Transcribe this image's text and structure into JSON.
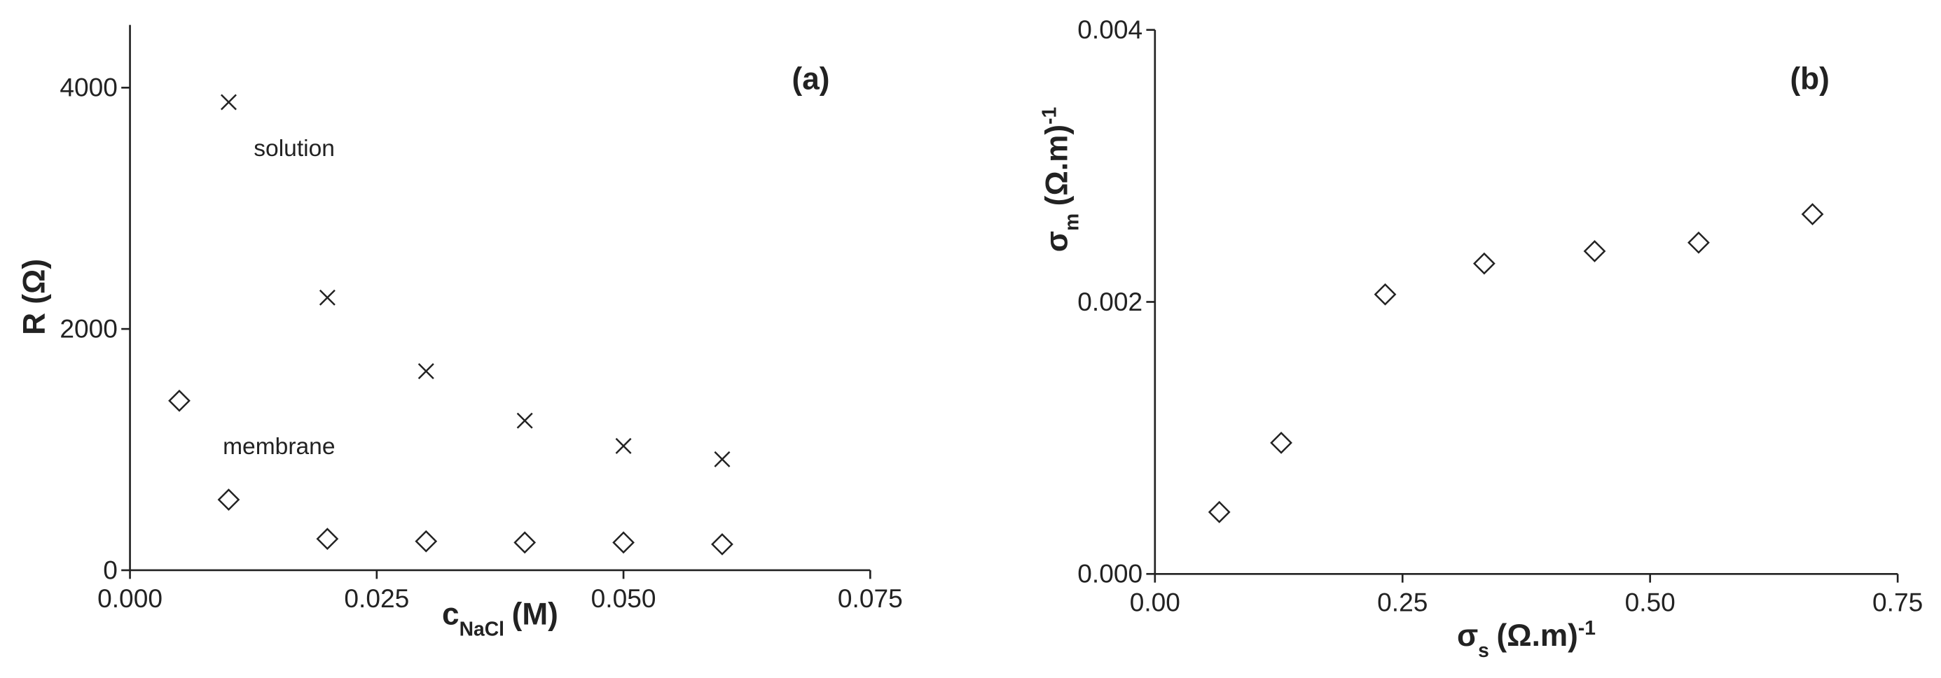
{
  "chart_data": [
    {
      "type": "scatter",
      "title": "(a)",
      "x_label": {
        "text": "c",
        "sub": "NaCl",
        "unit": "(M)"
      },
      "y_label": {
        "text": "R (Ω)"
      },
      "annotations": [
        "solution",
        "membrane"
      ],
      "xlim": [
        0,
        0.075
      ],
      "xticks": [
        {
          "value": 0,
          "label": "0.000"
        },
        {
          "value": 0.025,
          "label": "0.025"
        },
        {
          "value": 0.05,
          "label": "0.050"
        },
        {
          "value": 0.075,
          "label": "0.075"
        }
      ],
      "ylim": [
        0,
        4520
      ],
      "yticks": [
        0,
        2000,
        4000
      ],
      "series": [
        {
          "name": "solution",
          "marker": "x",
          "color": "#222222",
          "x": [
            0.01,
            0.02,
            0.03,
            0.04,
            0.05,
            0.06
          ],
          "values": [
            3880,
            2260,
            1650,
            1240,
            1030,
            920
          ]
        },
        {
          "name": "membrane",
          "marker": "diamond",
          "color": "#222222",
          "x": [
            0.005,
            0.01,
            0.02,
            0.03,
            0.04,
            0.05,
            0.06
          ],
          "values": [
            1405,
            585,
            260,
            240,
            230,
            230,
            215
          ]
        }
      ]
    },
    {
      "type": "scatter",
      "title": "(b)",
      "x_label": {
        "text": "σ",
        "sub": "s",
        "unit": "(Ω.m)",
        "sup": "-1"
      },
      "y_label": {
        "text": "σ",
        "sub": "m",
        "unit": "(Ω.m)",
        "sup": "-1"
      },
      "xlim": [
        0,
        0.75
      ],
      "xticks": [
        {
          "value": 0,
          "label": "0.00"
        },
        {
          "value": 0.25,
          "label": "0.25"
        },
        {
          "value": 0.5,
          "label": "0.50"
        },
        {
          "value": 0.75,
          "label": "0.75"
        }
      ],
      "ylim": [
        0,
        0.004
      ],
      "yticks": [
        {
          "value": 0,
          "label": "0.000"
        },
        0.002,
        0.004
      ],
      "series": [
        {
          "marker": "diamond",
          "color": "#222222",
          "x": [
            0.065,
            0.1275,
            0.2325,
            0.3325,
            0.444,
            0.549,
            0.664
          ],
          "values": [
            0.000455,
            0.000964,
            0.002055,
            0.002282,
            0.002373,
            0.002436,
            0.002645
          ]
        }
      ]
    }
  ]
}
